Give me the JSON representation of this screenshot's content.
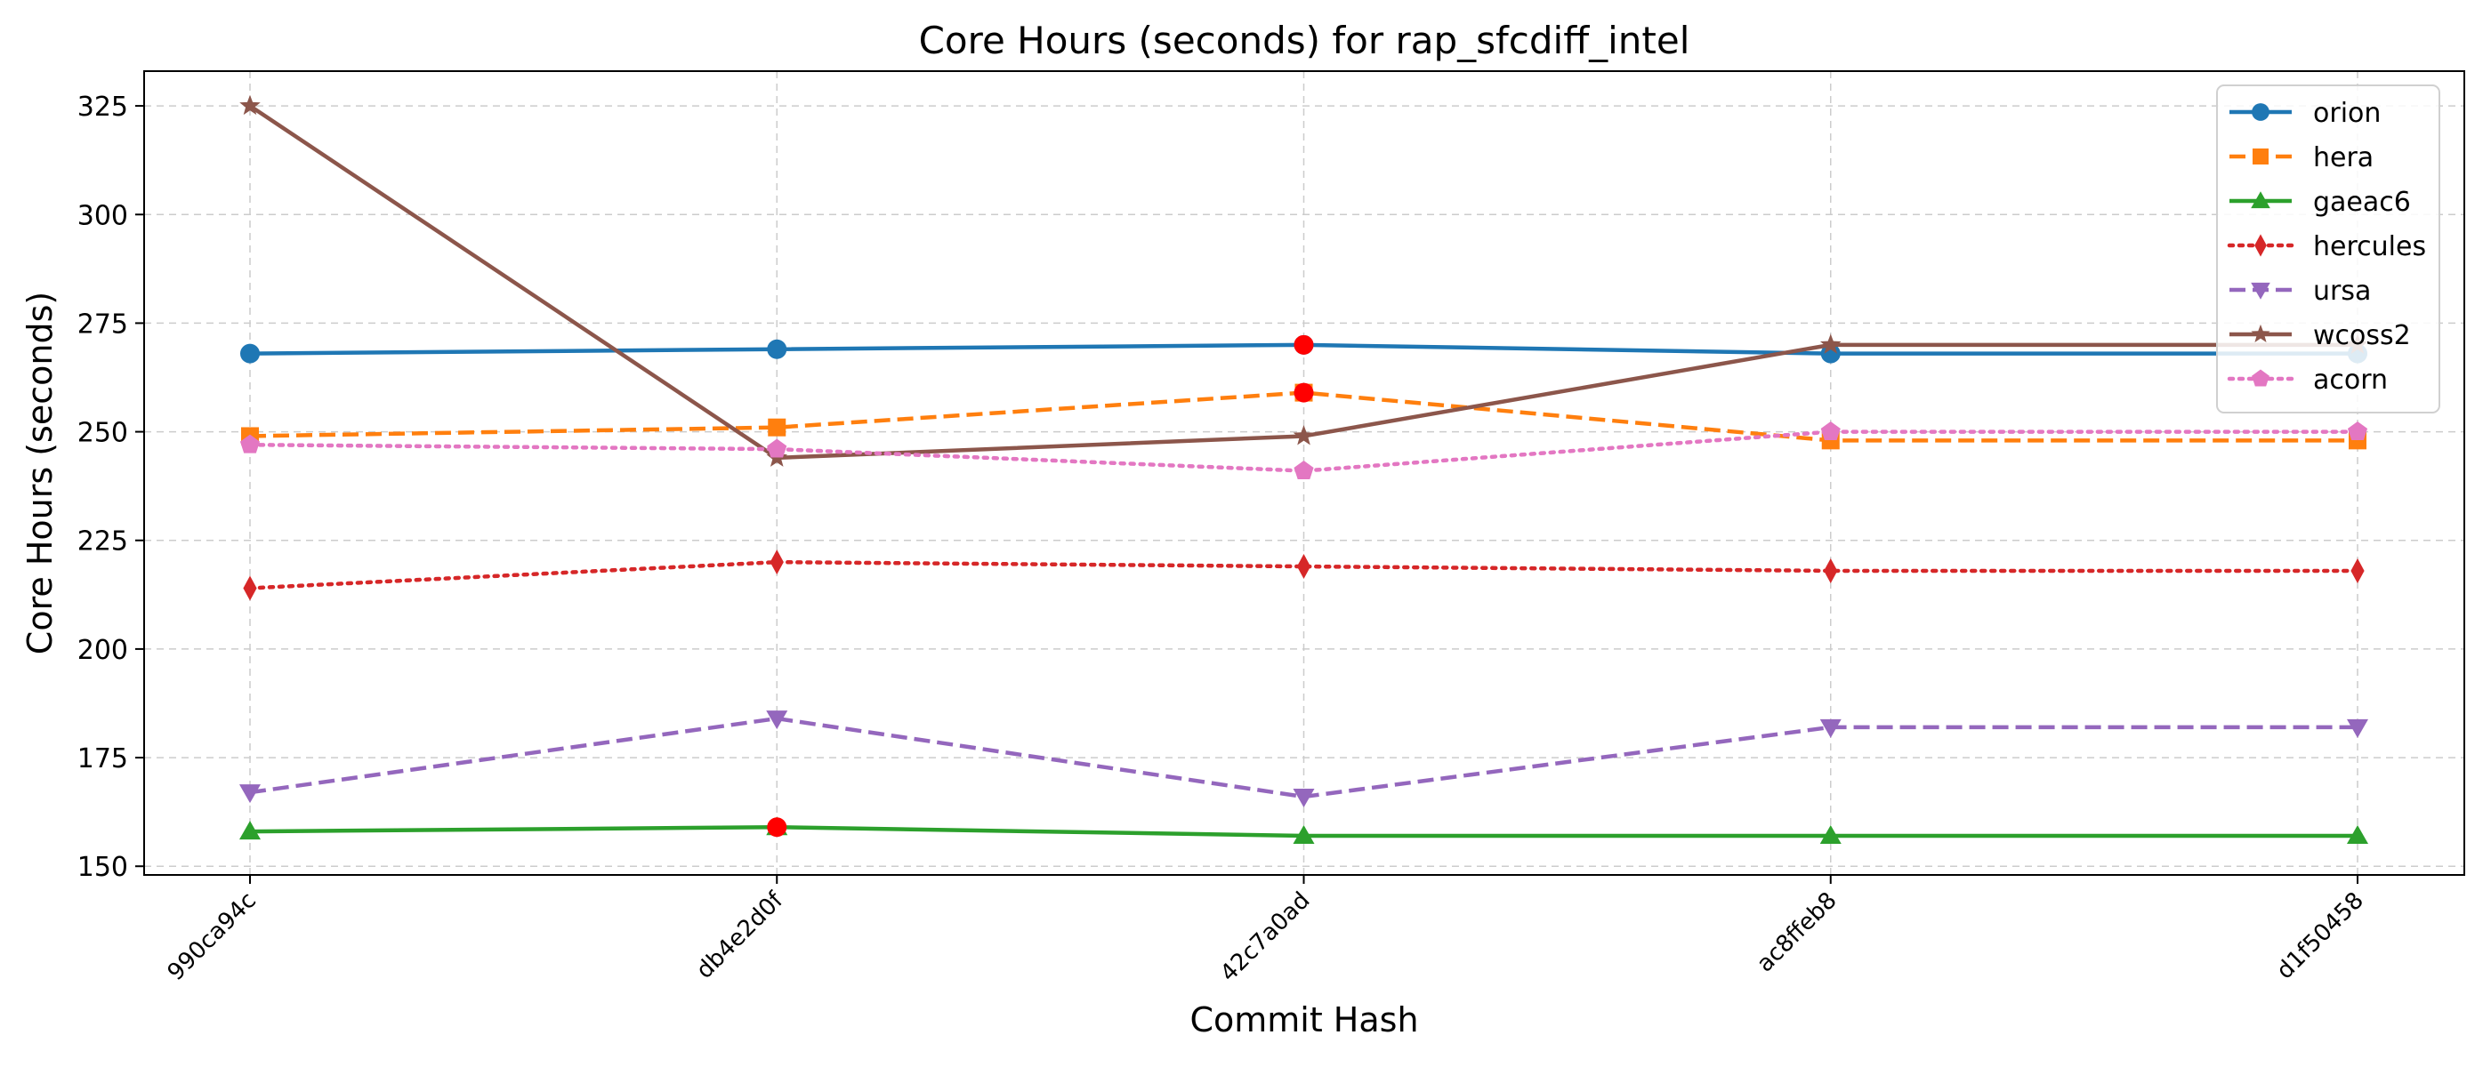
{
  "chart_data": {
    "type": "line",
    "title": "Core Hours (seconds) for rap_sfcdiff_intel",
    "xlabel": "Commit Hash",
    "ylabel": "Core Hours (seconds)",
    "categories": [
      "990ca94c",
      "db4e2d0f",
      "42c7a0ad",
      "ac8ffeb8",
      "d1f50458"
    ],
    "ylim": [
      148,
      333
    ],
    "yticks": [
      150,
      175,
      200,
      225,
      250,
      275,
      300,
      325
    ],
    "grid": true,
    "legend_position": "top-right",
    "series": [
      {
        "name": "orion",
        "values": [
          268,
          269,
          270,
          268,
          268
        ],
        "color": "#1f77b4",
        "marker": "circle",
        "line": "solid"
      },
      {
        "name": "hera",
        "values": [
          249,
          251,
          259,
          248,
          248
        ],
        "color": "#ff7f0e",
        "marker": "square",
        "line": "dashed"
      },
      {
        "name": "gaeac6",
        "values": [
          158,
          159,
          157,
          157,
          157
        ],
        "color": "#2ca02c",
        "marker": "triangle-up",
        "line": "solid"
      },
      {
        "name": "hercules",
        "values": [
          214,
          220,
          219,
          218,
          218
        ],
        "color": "#d62728",
        "marker": "thin-diamond",
        "line": "dotted"
      },
      {
        "name": "ursa",
        "values": [
          167,
          184,
          166,
          182,
          182
        ],
        "color": "#9467bd",
        "marker": "triangle-down",
        "line": "dashed"
      },
      {
        "name": "wcoss2",
        "values": [
          325,
          244,
          249,
          270,
          270
        ],
        "color": "#8c564b",
        "marker": "star",
        "line": "solid"
      },
      {
        "name": "acorn",
        "values": [
          247,
          246,
          241,
          250,
          250
        ],
        "color": "#e377c2",
        "marker": "pentagon",
        "line": "dotted"
      }
    ],
    "highlights": [
      {
        "series": "orion",
        "category": "42c7a0ad",
        "value": 270,
        "color": "#ff0000"
      },
      {
        "series": "hera",
        "category": "42c7a0ad",
        "value": 259,
        "color": "#ff0000"
      },
      {
        "series": "gaeac6",
        "category": "db4e2d0f",
        "value": 159,
        "color": "#ff0000"
      }
    ]
  }
}
